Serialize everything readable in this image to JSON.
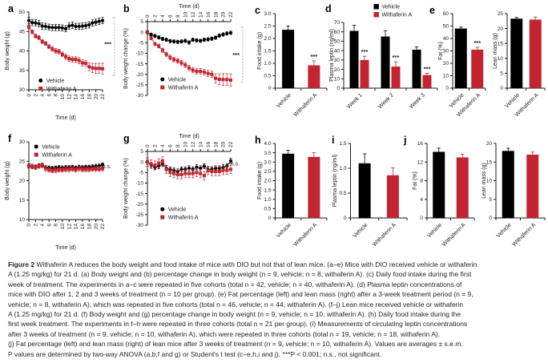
{
  "caption": {
    "lead": "Figure 2",
    "lines": [
      "Withaferin A reduces the body weight and food intake of mice with DIO but not that of lean mice. (a–e) Mice with DIO received vehicle or withaferin",
      "A (1.25 mg/kg) for 21 d. (a) Body weight and (b) percentage change in body weight (n = 9, vehicle; n = 8, withaferin A). (c) Daily food intake during the first",
      "week of treatment. The experiments in a–c were repeated in five cohorts (total n = 42, vehicle; n = 40, withaferin A). (d) Plasma leptin concentrations of",
      "mice with DIO after 1, 2 and 3 weeks of treatment (n = 10 per group). (e) Fat percentage (left) and lean mass (right) after a 3-week treatment period (n = 9,",
      "vehicle; n = 8, withaferin A), which was repeated in five cohorts (total n = 46, vehicle; n = 44, withaferin A). (f–j) Lean mice received vehicle or withaferin",
      "A (1.25 mg/kg) for 21 d. (f) Body weight and (g) percentage change in body weight (n = 9, vehicle; n = 10, withaferin A). (h) Daily food intake during the",
      "first week treatment. The experiments in f–h were repeated in three cohorts (total n = 21 per group). (i) Measurements of circulating leptin concentrations",
      "after 3 weeks of treatment (n = 9, vehicle; n = 10, withaferin A), which were repeated in three cohorts (total n = 19, vehicle; n = 18, withaferin A).",
      "(j) Fat percentage (left) and lean mass (right) of lean mice after 3 weeks of treatment (n = 9, vehicle; n = 10, withaferin A). Values are averages ± s.e.m.",
      "P values are determined by two-way ANOVA (a,b,f and g) or Student's t test (c–e,h,i and j). ***P < 0.001; n.s., not significant."
    ]
  },
  "chart_data": {
    "colors": {
      "vehicle": "#000000",
      "withaferin": "#c32530",
      "axis": "#1a1a1a",
      "bracket": "#999999"
    },
    "panels": [
      {
        "id": "a",
        "label": "a",
        "type": "line",
        "ylabel": "Body weight (g)",
        "xlabel": "Time (d)",
        "xaxis": "bottom",
        "ylim": [
          30,
          50
        ],
        "yticks": [
          30,
          35,
          40,
          45,
          50
        ],
        "ytickLabels": [
          "30",
          "35",
          "40",
          "45",
          "50"
        ],
        "xlim": [
          0,
          22
        ],
        "xticks": [
          0,
          2,
          4,
          6,
          8,
          10,
          12,
          14,
          16,
          18,
          20,
          22
        ],
        "x": [
          0,
          1,
          2,
          3,
          4,
          5,
          6,
          7,
          8,
          9,
          10,
          11,
          12,
          13,
          14,
          15,
          16,
          17,
          18,
          19,
          20,
          21,
          22
        ],
        "series": [
          {
            "name": "Vehicle",
            "color": "vehicle",
            "marker": "circle",
            "values": [
              47.8,
              47.3,
              47.2,
              47.0,
              46.4,
              46.3,
              46.1,
              46.0,
              46.0,
              46.0,
              45.9,
              45.7,
              46.4,
              46.6,
              46.3,
              46.3,
              46.4,
              46.5,
              46.7,
              47.2,
              47.4,
              47.6,
              47.8
            ],
            "err": 0.8
          },
          {
            "name": "Withaferin A",
            "color": "withaferin",
            "marker": "square",
            "values": [
              46.2,
              44.9,
              43.8,
              43.4,
              42.4,
              41.9,
              41.1,
              40.5,
              40.0,
              39.8,
              39.1,
              38.5,
              38.0,
              37.8,
              37.8,
              37.5,
              36.9,
              36.8,
              35.9,
              35.6,
              35.5,
              35.5,
              35.4
            ],
            "err": [
              0.5,
              0.5,
              0.5,
              0.5,
              0.5,
              0.5,
              0.5,
              0.6,
              0.6,
              0.6,
              0.6,
              0.7,
              0.7,
              0.7,
              0.7,
              0.8,
              0.8,
              0.8,
              1.0,
              1.2,
              1.3,
              1.3,
              1.4
            ]
          }
        ],
        "legend": [
          0.16,
          0.84
        ],
        "sig": {
          "text": "***",
          "bracket": true,
          "yfrac": 0.44
        }
      },
      {
        "id": "b",
        "label": "b",
        "type": "line",
        "ylabel": "Body weight change (%)",
        "xlabel": "Time (d)",
        "xaxis": "top",
        "ylim": [
          -30,
          5
        ],
        "yticks": [
          5,
          0,
          -5,
          -10,
          -15,
          -20,
          -25,
          -30
        ],
        "ytickLabels": [
          "5",
          "0",
          "-5",
          "-10",
          "-15",
          "-20",
          "-25",
          "-30"
        ],
        "xlim": [
          0,
          22
        ],
        "xticks": [
          0,
          2,
          4,
          6,
          8,
          10,
          12,
          14,
          16,
          18,
          20,
          22
        ],
        "x": [
          0,
          1,
          2,
          3,
          4,
          5,
          6,
          7,
          8,
          9,
          10,
          11,
          12,
          13,
          14,
          15,
          16,
          17,
          18,
          19,
          20,
          21,
          22
        ],
        "series": [
          {
            "name": "Vehicle",
            "color": "vehicle",
            "marker": "circle",
            "values": [
              0,
              -1.2,
              -1.8,
              -2.5,
              -3.2,
              -3.6,
              -4.2,
              -4.4,
              -4.6,
              -4.4,
              -4.1,
              -4.9,
              -3.6,
              -3.9,
              -4.1,
              -3.6,
              -3.4,
              -3.1,
              -2.6,
              -1.6,
              -1.1,
              -0.6,
              -0.3
            ],
            "err": 0.8
          },
          {
            "name": "Withaferin A",
            "color": "withaferin",
            "marker": "square",
            "values": [
              0,
              -3.0,
              -5.6,
              -6.6,
              -8.6,
              -10.5,
              -12.0,
              -13.0,
              -13.6,
              -14.6,
              -15.6,
              -17.0,
              -18.0,
              -18.6,
              -18.6,
              -19.0,
              -19.6,
              -20.0,
              -21.9,
              -22.4,
              -22.5,
              -22.5,
              -22.8
            ],
            "err": [
              0.3,
              0.6,
              0.8,
              0.9,
              1.0,
              1.0,
              1.1,
              1.1,
              1.2,
              1.2,
              1.2,
              1.3,
              1.3,
              1.3,
              1.4,
              1.4,
              1.5,
              1.5,
              2.2,
              2.6,
              2.8,
              2.8,
              3.0
            ]
          }
        ],
        "legend": [
          0.18,
          0.74
        ],
        "sig": {
          "text": "***",
          "bracket": true,
          "yfrac": 0.48
        }
      },
      {
        "id": "c",
        "label": "c",
        "type": "bar",
        "ylabel": "Food intake (g)",
        "ylim": [
          0,
          3
        ],
        "yticks": [
          0,
          0.5,
          1,
          1.5,
          2,
          2.5,
          3
        ],
        "ytickLabels": [
          "0",
          "0.5",
          "1.0",
          "1.5",
          "2.0",
          "2.5",
          "3.0"
        ],
        "bars": [
          {
            "label": "Vehicle",
            "value": 2.35,
            "err": 0.15,
            "color": "vehicle"
          },
          {
            "label": "Withaferin A",
            "value": 0.92,
            "err": 0.18,
            "color": "withaferin",
            "sig": "***"
          }
        ]
      },
      {
        "id": "d",
        "label": "d",
        "type": "bar",
        "ylabel": "Plasma leptin (ng/ml)",
        "ylim": [
          0,
          70
        ],
        "yticks": [
          0,
          10,
          20,
          30,
          40,
          50,
          60,
          70
        ],
        "ytickLabels": [
          "0",
          "10",
          "20",
          "30",
          "40",
          "50",
          "60",
          "70"
        ],
        "legend": [
          "Vehicle",
          "Withaferin A"
        ],
        "groups": [
          {
            "label": "Week 1",
            "bars": [
              {
                "value": 61,
                "err": 6,
                "color": "vehicle"
              },
              {
                "value": 30,
                "err": 4,
                "color": "withaferin",
                "sig": "***"
              }
            ]
          },
          {
            "label": "Week 2",
            "bars": [
              {
                "value": 55,
                "err": 6,
                "color": "vehicle"
              },
              {
                "value": 23,
                "err": 5,
                "color": "withaferin",
                "sig": "***"
              }
            ]
          },
          {
            "label": "Week 3",
            "bars": [
              {
                "value": 41,
                "err": 3,
                "color": "vehicle"
              },
              {
                "value": 14,
                "err": 2,
                "color": "withaferin",
                "sig": "***"
              }
            ]
          }
        ]
      },
      {
        "id": "e_fat",
        "label": "e",
        "type": "bar",
        "ylabel": "Fat (%)",
        "ylim": [
          0,
          60
        ],
        "yticks": [
          0,
          10,
          20,
          30,
          40,
          50,
          60
        ],
        "ytickLabels": [
          "0",
          "10",
          "20",
          "30",
          "40",
          "50",
          "60"
        ],
        "bars": [
          {
            "label": "Vehicle",
            "value": 48,
            "err": 1.2,
            "color": "vehicle"
          },
          {
            "label": "Withaferin A",
            "value": 31,
            "err": 2,
            "color": "withaferin",
            "sig": "***"
          }
        ]
      },
      {
        "id": "e_lean",
        "type": "bar",
        "ylabel": "Lean mass (g)",
        "ylim": [
          0,
          25
        ],
        "yticks": [
          0,
          5,
          10,
          15,
          20,
          25
        ],
        "ytickLabels": [
          "0",
          "5",
          "10",
          "15",
          "20",
          "25"
        ],
        "bars": [
          {
            "label": "Vehicle",
            "value": 23.3,
            "err": 0.4,
            "color": "vehicle"
          },
          {
            "label": "Withaferin A",
            "value": 23.0,
            "err": 0.9,
            "color": "withaferin"
          }
        ]
      },
      {
        "id": "f",
        "label": "f",
        "type": "line",
        "ylabel": "Body weight (g)",
        "xlabel": "Time (d)",
        "xaxis": "bottom",
        "ylim": [
          10,
          30
        ],
        "yticks": [
          10,
          15,
          20,
          25,
          30
        ],
        "ytickLabels": [
          "10",
          "15",
          "20",
          "25",
          "30"
        ],
        "xlim": [
          0,
          22
        ],
        "xticks": [
          0,
          2,
          4,
          6,
          8,
          10,
          12,
          14,
          16,
          18,
          20,
          22
        ],
        "x": [
          0,
          1,
          2,
          3,
          4,
          5,
          6,
          7,
          8,
          9,
          10,
          11,
          12,
          13,
          14,
          15,
          16,
          17,
          18,
          19,
          20,
          21,
          22
        ],
        "series": [
          {
            "name": "Vehicle",
            "color": "vehicle",
            "marker": "circle",
            "values": [
              23.8,
              23.6,
              23.5,
              23.8,
              23.9,
              23.4,
              23.3,
              23.2,
              23.3,
              23.4,
              23.3,
              23.4,
              23.4,
              23.5,
              23.3,
              23.5,
              23.4,
              23.5,
              23.5,
              23.6,
              23.7,
              23.8,
              24.1
            ],
            "err": 0.5
          },
          {
            "name": "Withaferin A",
            "color": "withaferin",
            "marker": "square",
            "values": [
              23.8,
              23.7,
              23.5,
              23.8,
              24.0,
              23.1,
              22.8,
              22.6,
              22.7,
              22.8,
              22.8,
              22.9,
              22.9,
              23.0,
              22.8,
              23.1,
              22.9,
              22.9,
              22.9,
              23.0,
              23.0,
              23.0,
              23.1
            ],
            "err": 0.6
          }
        ],
        "legend": [
          0.1,
          0.02
        ],
        "sig": {
          "text": "n.s.",
          "bracket": false,
          "yfrac": 0.34
        }
      },
      {
        "id": "g",
        "label": "g",
        "type": "line",
        "ylabel": "Body weight change (%)",
        "xlabel": "Time (d)",
        "xaxis": "top",
        "ylim": [
          -30,
          5
        ],
        "yticks": [
          5,
          0,
          -5,
          -10,
          -15,
          -20,
          -25,
          -30
        ],
        "ytickLabels": [
          "5",
          "0",
          "-5",
          "-10",
          "-15",
          "-20",
          "-25",
          "-30"
        ],
        "xlim": [
          0,
          22
        ],
        "xticks": [
          0,
          2,
          4,
          6,
          8,
          10,
          12,
          14,
          16,
          18,
          20,
          22
        ],
        "x": [
          0,
          1,
          2,
          3,
          4,
          5,
          6,
          7,
          8,
          9,
          10,
          11,
          12,
          13,
          14,
          15,
          16,
          17,
          18,
          19,
          20,
          21,
          22
        ],
        "series": [
          {
            "name": "Vehicle",
            "color": "vehicle",
            "marker": "circle",
            "values": [
              0,
              -1.5,
              -2.5,
              -2.0,
              -1.0,
              -3.0,
              -3.5,
              -4.0,
              -4.5,
              -3.5,
              -3.5,
              -3.0,
              -3.5,
              -2.5,
              -3.0,
              -2.0,
              -3.5,
              -3.5,
              -3.0,
              -3.0,
              -2.5,
              -2.0,
              0.5
            ],
            "err": 1.2
          },
          {
            "name": "Withaferin A",
            "color": "withaferin",
            "marker": "square",
            "values": [
              0,
              -1.0,
              -1.5,
              -0.5,
              0.5,
              -3.5,
              -5.0,
              -5.5,
              -6.0,
              -6.0,
              -5.5,
              -5.5,
              -5.5,
              -5.0,
              -5.5,
              -6.5,
              -4.0,
              -4.5,
              -4.5,
              -4.5,
              -4.0,
              -4.0,
              -3.5
            ],
            "err": 2.0
          }
        ],
        "legend": [
          0.18,
          0.74
        ],
        "sig": {
          "text": "n.s.",
          "bracket": false,
          "yfrac": 0.19
        }
      },
      {
        "id": "h",
        "label": "h",
        "type": "bar",
        "ylabel": "Food intake (g)",
        "ylim": [
          0,
          4
        ],
        "yticks": [
          0,
          0.5,
          1,
          1.5,
          2,
          2.5,
          3,
          3.5,
          4
        ],
        "ytickLabels": [
          "0",
          "0.5",
          "1.0",
          "1.5",
          "2.0",
          "2.5",
          "3.0",
          "3.5",
          "4.0"
        ],
        "bars": [
          {
            "label": "Vehicle",
            "value": 3.45,
            "err": 0.18,
            "color": "vehicle"
          },
          {
            "label": "Withaferin A",
            "value": 3.28,
            "err": 0.22,
            "color": "withaferin"
          }
        ]
      },
      {
        "id": "i",
        "label": "i",
        "type": "bar",
        "ylabel": "Plasma leptin (ng/ml)",
        "ylim": [
          0,
          1.5
        ],
        "yticks": [
          0,
          0.5,
          1,
          1.5
        ],
        "ytickLabels": [
          "0",
          "0.5",
          "1.0",
          "1.5"
        ],
        "bars": [
          {
            "label": "Vehicle",
            "value": 1.1,
            "err": 0.19,
            "color": "vehicle"
          },
          {
            "label": "Withaferin A",
            "value": 0.86,
            "err": 0.15,
            "color": "withaferin"
          }
        ]
      },
      {
        "id": "j_fat",
        "label": "j",
        "type": "bar",
        "ylabel": "Fat (%)",
        "ylim": [
          0,
          16
        ],
        "yticks": [
          0,
          4,
          8,
          12,
          16
        ],
        "ytickLabels": [
          "0",
          "4",
          "8",
          "12",
          "16"
        ],
        "bars": [
          {
            "label": "Vehicle",
            "value": 14.2,
            "err": 0.8,
            "color": "vehicle"
          },
          {
            "label": "Withaferin A",
            "value": 13.0,
            "err": 0.7,
            "color": "withaferin"
          }
        ]
      },
      {
        "id": "j_lean",
        "type": "bar",
        "ylabel": "Lean mass (g)",
        "ylim": [
          0,
          20
        ],
        "yticks": [
          0,
          5,
          10,
          15,
          20
        ],
        "ytickLabels": [
          "0",
          "5",
          "10",
          "15",
          "20"
        ],
        "bars": [
          {
            "label": "Vehicle",
            "value": 18.0,
            "err": 0.7,
            "color": "vehicle"
          },
          {
            "label": "Withaferin A",
            "value": 17.0,
            "err": 0.7,
            "color": "withaferin"
          }
        ]
      }
    ]
  }
}
